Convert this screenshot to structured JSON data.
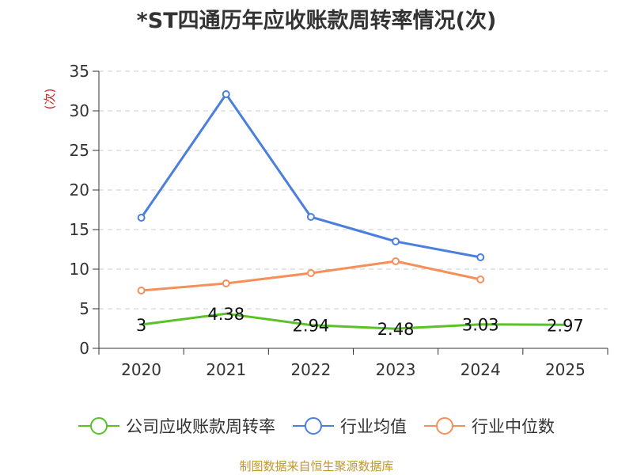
{
  "chart_data": {
    "type": "line",
    "title": "*ST四通历年应收账款周转率情况(次)",
    "ylabel": "(次)",
    "xlabel": "",
    "ylim": [
      0,
      35
    ],
    "yticks": [
      0,
      5,
      10,
      15,
      20,
      25,
      30,
      35
    ],
    "grid": true,
    "legend_position": "bottom",
    "categories": [
      "2020",
      "2021",
      "2022",
      "2023",
      "2024",
      "2025"
    ],
    "series": [
      {
        "name": "公司应收账款周转率",
        "values": [
          3,
          4.38,
          2.94,
          2.48,
          3.03,
          2.97
        ],
        "labels": [
          "3",
          "4.38",
          "2.94",
          "2.48",
          "3.03",
          "2.97"
        ],
        "color": "#5ac228",
        "show_points": false
      },
      {
        "name": "行业均值",
        "values": [
          16.5,
          32.1,
          16.6,
          13.5,
          11.5,
          null
        ],
        "color": "#4a7fdd",
        "show_points": true
      },
      {
        "name": "行业中位数",
        "values": [
          7.3,
          8.2,
          9.5,
          11.0,
          8.7,
          null
        ],
        "color": "#f5905a",
        "show_points": true
      }
    ]
  },
  "source_text": "制图数据来自恒生聚源数据库",
  "source_color": "#c0962f",
  "axis_label_color": "#cc2222"
}
